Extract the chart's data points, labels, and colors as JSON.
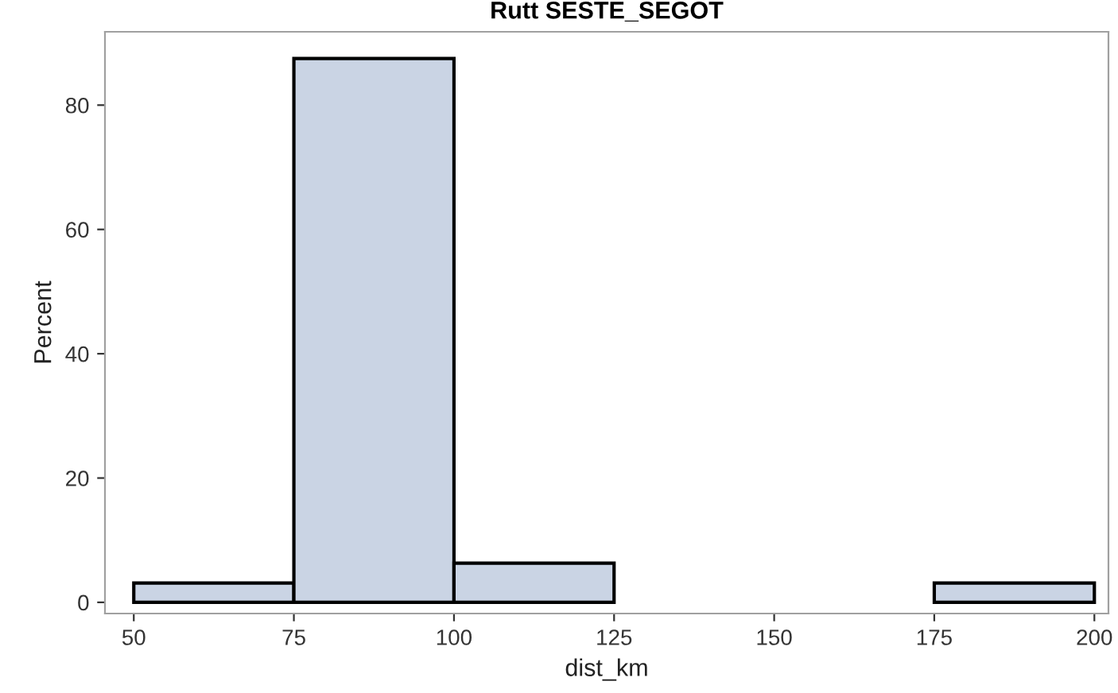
{
  "chart_data": {
    "type": "histogram",
    "title": "Rutt SESTE_SEGOT",
    "xlabel": "dist_km",
    "ylabel": "Percent",
    "bins": [
      50,
      75,
      100,
      125,
      150,
      175,
      200
    ],
    "values": [
      3.1,
      87.5,
      6.3,
      0,
      0,
      3.1
    ],
    "color": "#cad4e4",
    "xlim": [
      45.5,
      202.2
    ],
    "ylim": [
      -1.8,
      91.8
    ],
    "xticks": [
      50,
      75,
      100,
      125,
      150,
      175,
      200
    ],
    "yticks": [
      0,
      20,
      40,
      60,
      80
    ],
    "grid": false
  }
}
